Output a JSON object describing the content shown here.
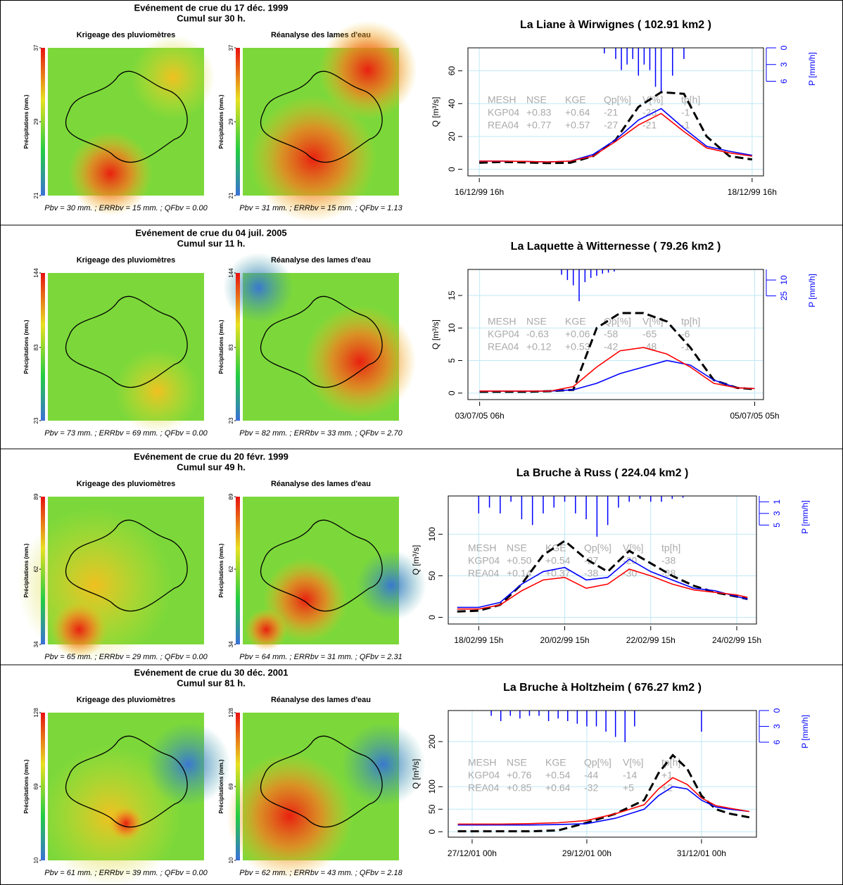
{
  "events": [
    {
      "title": "Evénement de crue du 17 déc. 1999",
      "cumul": "Cumul sur 30 h.",
      "colorbar_ticks": [
        21,
        29,
        37
      ],
      "maps": [
        {
          "title": "Krigeage des pluviomètres",
          "colorbar_label": "Précipitations (mm.)",
          "caption": "Pbv = 30 mm. ; ERRbv = 15 mm. ; QFbv = 0.00"
        },
        {
          "title": "Réanalyse des lames d'eau",
          "colorbar_label": "Précipitations (mm.)",
          "caption": "Pbv = 31 mm. ; ERRbv = 15 mm. ; QFbv = 1.13"
        }
      ]
    },
    {
      "title": "Evénement de crue du 04 juil. 2005",
      "cumul": "Cumul sur 11 h.",
      "colorbar_ticks": [
        23,
        83,
        144
      ],
      "maps": [
        {
          "title": "Krigeage des pluviomètres",
          "colorbar_label": "Précipitations (mm.)",
          "caption": "Pbv = 73 mm. ; ERRbv = 69 mm. ; QFbv = 0.00"
        },
        {
          "title": "Réanalyse des lames d'eau",
          "colorbar_label": "Précipitations (mm.)",
          "caption": "Pbv = 82 mm. ; ERRbv = 33 mm. ; QFbv = 2.70"
        }
      ]
    },
    {
      "title": "Evénement de crue du 20 févr. 1999",
      "cumul": "Cumul sur 49 h.",
      "colorbar_ticks": [
        34,
        62,
        89
      ],
      "maps": [
        {
          "title": "Krigeage des pluviomètres",
          "colorbar_label": "Précipitations (mm.)",
          "caption": "Pbv = 65 mm. ; ERRbv = 29 mm. ; QFbv = 0.00"
        },
        {
          "title": "Réanalyse des lames d'eau",
          "colorbar_label": "Précipitations (mm.)",
          "caption": "Pbv = 64 mm. ; ERRbv = 31 mm. ; QFbv = 2.31"
        }
      ]
    },
    {
      "title": "Evénement de crue du 30 déc. 2001",
      "cumul": "Cumul sur 81 h.",
      "colorbar_ticks": [
        10,
        69,
        128
      ],
      "maps": [
        {
          "title": "Krigeage des pluviomètres",
          "colorbar_label": "Précipitations (mm.)",
          "caption": "Pbv = 61 mm. ; ERRbv = 39 mm. ; QFbv = 0.00"
        },
        {
          "title": "Réanalyse des lames d'eau",
          "colorbar_label": "Précipitations (mm.)",
          "caption": "Pbv = 62 mm. ; ERRbv = 43 mm. ; QFbv = 2.18"
        }
      ]
    }
  ],
  "chart_data": [
    {
      "type": "line",
      "title": "La Liane à Wirwignes ( 102.91 km2 )",
      "ylabel": "Q [m³/s]",
      "y2label": "P [mm/h]",
      "xlim": [
        -2,
        50
      ],
      "xticks": [
        {
          "value": 0,
          "label": "16/12/99 16h"
        },
        {
          "value": 48,
          "label": "18/12/99 16h"
        }
      ],
      "ylim": [
        -4,
        74
      ],
      "yticks": [
        0,
        20,
        40,
        60
      ],
      "y2lim": [
        23,
        0
      ],
      "y2ticks": [
        0,
        3,
        6
      ],
      "grid": true,
      "x": [
        0,
        4,
        8,
        12,
        16,
        20,
        24,
        28,
        32,
        36,
        40,
        44,
        48
      ],
      "series": [
        {
          "color": "#000000",
          "dash": true,
          "values": [
            4,
            4.5,
            4.2,
            3.8,
            4,
            8,
            18,
            38,
            47,
            46,
            20,
            8,
            6
          ]
        },
        {
          "color": "#0000ff",
          "values": [
            5,
            5,
            4.8,
            4.5,
            5,
            9,
            18,
            30,
            37,
            25,
            14,
            11,
            8.5
          ]
        },
        {
          "color": "#ff0000",
          "values": [
            5,
            5,
            4.8,
            4.5,
            5,
            8,
            17,
            27,
            34,
            23,
            13,
            10,
            8
          ]
        }
      ],
      "precip": {
        "color": "#0000ff",
        "x": [
          22,
          24,
          25,
          26,
          27,
          28,
          29,
          30,
          31,
          32,
          34,
          36
        ],
        "values": [
          1,
          2,
          4,
          3,
          2,
          5,
          3,
          4,
          7,
          8,
          5,
          2
        ]
      },
      "stats": {
        "header": [
          "MESH",
          "NSE",
          "KGE",
          "Qp[%]",
          "V[%]",
          "tp[h]"
        ],
        "rows": [
          [
            "KGP04",
            "+0.83",
            "+0.64",
            "-21",
            "-23",
            "-1"
          ],
          [
            "REA04",
            "+0.77",
            "+0.57",
            "-27",
            "-21",
            "-1"
          ]
        ]
      }
    },
    {
      "type": "line",
      "title": "La Laquette à Witternesse ( 79.26 km2 )",
      "ylabel": "Q [m³/s]",
      "y2label": "P [mm/h]",
      "xlim": [
        -2,
        48.5
      ],
      "xticks": [
        {
          "value": 0,
          "label": "03/07/05 06h"
        },
        {
          "value": 47,
          "label": "05/07/05 05h"
        }
      ],
      "ylim": [
        -1,
        19
      ],
      "yticks": [
        0,
        5,
        10,
        15
      ],
      "y2lim": [
        123,
        0
      ],
      "y2ticks": [
        10,
        25
      ],
      "grid": true,
      "x": [
        0,
        4,
        8,
        12,
        16,
        20,
        24,
        28,
        32,
        36,
        40,
        44,
        47
      ],
      "series": [
        {
          "color": "#000000",
          "dash": true,
          "values": [
            0.2,
            0.2,
            0.2,
            0.3,
            0.5,
            10,
            12.3,
            12.3,
            11,
            7,
            2,
            0.8,
            0.6
          ]
        },
        {
          "color": "#0000ff",
          "values": [
            0.3,
            0.3,
            0.3,
            0.3,
            0.5,
            1.5,
            3,
            4,
            5,
            4.3,
            2,
            0.8,
            0.7
          ]
        },
        {
          "color": "#ff0000",
          "values": [
            0.3,
            0.3,
            0.3,
            0.3,
            1,
            4,
            6.5,
            7,
            6,
            4,
            1.5,
            0.8,
            0.7
          ]
        }
      ],
      "precip": {
        "color": "#0000ff",
        "x": [
          14,
          15,
          16,
          17,
          18,
          19,
          20,
          21,
          22,
          23
        ],
        "values": [
          5,
          10,
          15,
          30,
          12,
          8,
          6,
          4,
          3,
          2
        ]
      },
      "stats": {
        "header": [
          "MESH",
          "NSE",
          "KGE",
          "Qp[%]",
          "V[%]",
          "tp[h]"
        ],
        "rows": [
          [
            "KGP04",
            "-0.63",
            "+0.06",
            "-58",
            "-65",
            "-6"
          ],
          [
            "REA04",
            "+0.12",
            "+0.53",
            "-42",
            "-48",
            "-1"
          ]
        ]
      }
    },
    {
      "type": "line",
      "title": "La Bruche à Russ ( 224.04 km2 )",
      "ylabel": "Q [m³/s]",
      "y2label": "P [mm/h]",
      "xlim": [
        -17,
        155
      ],
      "xticks": [
        {
          "value": 0,
          "label": "18/02/99 15h"
        },
        {
          "value": 48,
          "label": "20/02/99 15h"
        },
        {
          "value": 96,
          "label": "22/02/99 15h"
        },
        {
          "value": 144,
          "label": "24/02/99 15h"
        }
      ],
      "ylim": [
        -8,
        146
      ],
      "yticks": [
        0,
        50,
        100
      ],
      "y2lim": [
        22,
        0
      ],
      "y2ticks": [
        1,
        3,
        5
      ],
      "grid": true,
      "x": [
        -12,
        0,
        12,
        24,
        36,
        48,
        60,
        72,
        84,
        96,
        108,
        120,
        132,
        144,
        150
      ],
      "series": [
        {
          "color": "#000000",
          "dash": true,
          "values": [
            7,
            8,
            15,
            40,
            75,
            92,
            70,
            55,
            80,
            65,
            50,
            38,
            30,
            25,
            22
          ]
        },
        {
          "color": "#0000ff",
          "values": [
            12,
            12,
            18,
            40,
            55,
            60,
            45,
            48,
            70,
            55,
            45,
            35,
            32,
            25,
            22
          ]
        },
        {
          "color": "#ff0000",
          "values": [
            10,
            10,
            15,
            32,
            45,
            48,
            35,
            40,
            58,
            50,
            40,
            33,
            30,
            27,
            24
          ]
        }
      ],
      "precip": {
        "color": "#0000ff",
        "x": [
          0,
          6,
          12,
          18,
          24,
          30,
          36,
          42,
          48,
          54,
          60,
          66,
          72,
          78,
          84,
          90,
          96,
          102,
          108,
          114
        ],
        "values": [
          3,
          2,
          3,
          1,
          4,
          5,
          3,
          2,
          1,
          3,
          4,
          7,
          5,
          2,
          1,
          0.5,
          1,
          1,
          0.5,
          0.3
        ]
      },
      "stats": {
        "header": [
          "MESH",
          "NSE",
          "KGE",
          "Qp[%]",
          "V[%]",
          "tp[h]"
        ],
        "rows": [
          [
            "KGP04",
            "+0.50",
            "+0.54",
            "-27",
            "-20",
            "-38"
          ],
          [
            "REA04",
            "+0.14",
            "+0.37",
            "-38",
            "-30",
            "-38"
          ]
        ]
      }
    },
    {
      "type": "line",
      "title": "La Bruche à Holtzheim ( 676.27 km2 )",
      "ylabel": "Q [m³/s]",
      "y2label": "P [mm/h]",
      "xlim": [
        -10,
        119
      ],
      "xticks": [
        {
          "value": 0,
          "label": "27/12/01 00h"
        },
        {
          "value": 48,
          "label": "29/12/01 00h"
        },
        {
          "value": 96,
          "label": "31/12/01 00h"
        }
      ],
      "ylim": [
        -12,
        269
      ],
      "yticks": [
        0,
        50,
        100,
        200
      ],
      "y2lim": [
        24,
        0
      ],
      "y2ticks": [
        0,
        3,
        6
      ],
      "grid": true,
      "x": [
        -6,
        0,
        12,
        24,
        36,
        48,
        60,
        72,
        78,
        84,
        90,
        96,
        102,
        108,
        116
      ],
      "series": [
        {
          "color": "#000000",
          "dash": true,
          "values": [
            1,
            1,
            1,
            1,
            3,
            20,
            40,
            70,
            130,
            170,
            140,
            80,
            50,
            40,
            32
          ]
        },
        {
          "color": "#0000ff",
          "values": [
            15,
            15,
            15,
            15,
            16,
            18,
            30,
            50,
            80,
            100,
            95,
            70,
            55,
            50,
            45
          ]
        },
        {
          "color": "#ff0000",
          "values": [
            17,
            17,
            17,
            18,
            20,
            25,
            40,
            60,
            95,
            120,
            105,
            75,
            58,
            52,
            45
          ]
        }
      ],
      "precip": {
        "color": "#0000ff",
        "x": [
          8,
          12,
          16,
          20,
          24,
          28,
          32,
          36,
          40,
          44,
          48,
          52,
          56,
          60,
          64,
          68,
          96
        ],
        "values": [
          1,
          2,
          1,
          1.5,
          1,
          1,
          2,
          1.5,
          2,
          2.5,
          3,
          3,
          4,
          5,
          6,
          3,
          4
        ]
      },
      "stats": {
        "header": [
          "MESH",
          "NSE",
          "KGE",
          "Qp[%]",
          "V[%]",
          "tp[h]"
        ],
        "rows": [
          [
            "KGP04",
            "+0.76",
            "+0.54",
            "-44",
            "-14",
            "+1"
          ],
          [
            "REA04",
            "+0.85",
            "+0.64",
            "-32",
            "+5",
            "+2"
          ]
        ]
      }
    }
  ]
}
